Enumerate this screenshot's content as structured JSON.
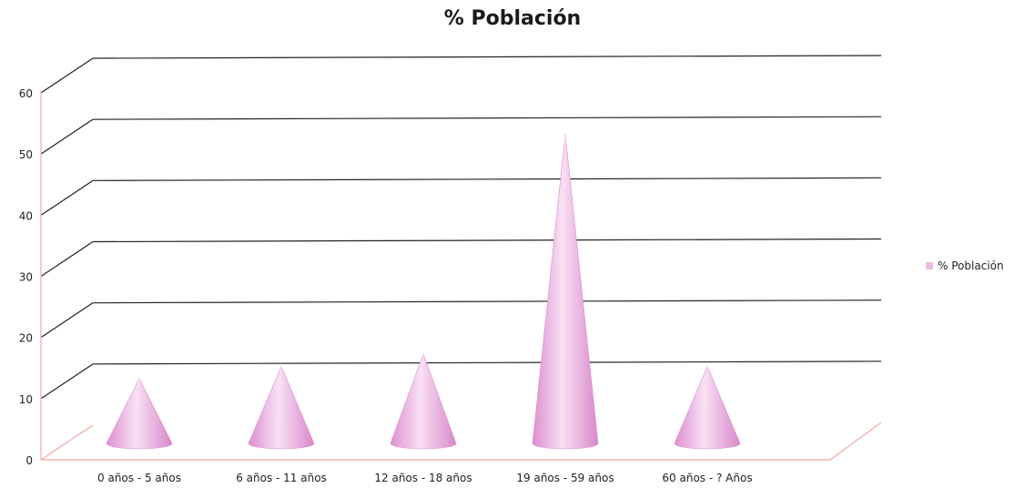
{
  "chart_data": {
    "type": "bar",
    "title": "% Población",
    "categories": [
      "0 años - 5 años",
      "6 años - 11 años",
      "12 años - 18 años",
      "19 años - 59 años",
      "60 años - ? Años"
    ],
    "series": [
      {
        "name": "% Población",
        "values": [
          10,
          12,
          14,
          50,
          12
        ]
      }
    ],
    "ylim": [
      0,
      60
    ],
    "yticks": [
      "0",
      "10",
      "20",
      "30",
      "40",
      "50",
      "60"
    ],
    "xlabel": "",
    "ylabel": "",
    "grid": true,
    "legend": "right",
    "shape": "cone",
    "colors": {
      "cone": "#f1b8e6",
      "cone_dark": "#dc8fce",
      "cone_light": "#f9dff4",
      "grid": "#222222",
      "axis": "#f0a8a8"
    }
  }
}
